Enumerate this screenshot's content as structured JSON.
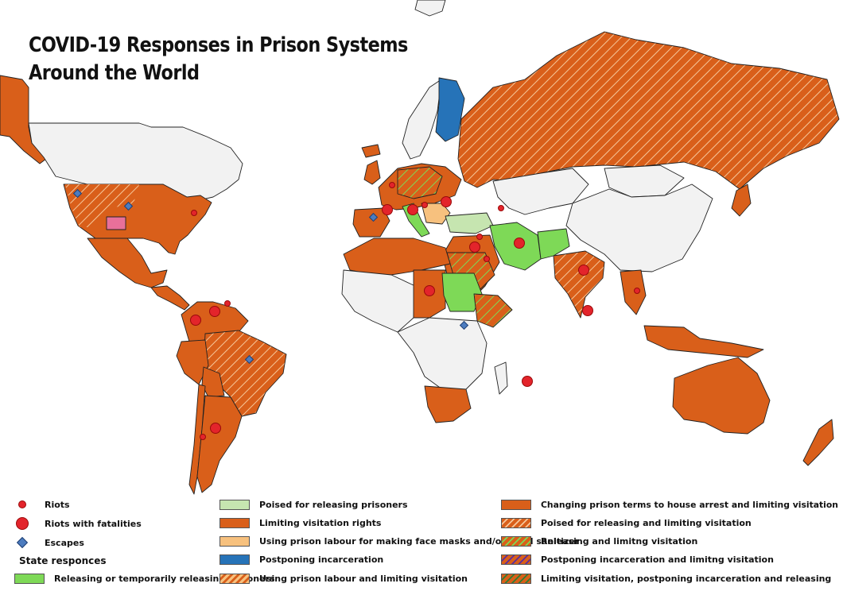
{
  "title": {
    "line1": "COVID-19 Responses in Prison Systems",
    "line2": "Around the World"
  },
  "colors": {
    "ocean": "#ffffff",
    "no_data": "#f2f2f2",
    "border": "#222222",
    "limiting_visitation": "#d95f1a",
    "releasing": "#7ed957",
    "poised_releasing": "#c6e5b0",
    "postponing": "#2673b8",
    "prison_labour": "#f7c17e",
    "riot": "#e3242b",
    "escape": "#4c7cbf",
    "hatch_light": "#f6c79a",
    "hatch_green": "#7ed957",
    "hatch_purple": "#5a2ca0",
    "pink": "#e8709a"
  },
  "legend": {
    "markers": [
      {
        "label": "Riots",
        "marker": "small-red-dot"
      },
      {
        "label": "Riots with fatalities",
        "marker": "large-red-dot"
      },
      {
        "label": "Escapes",
        "marker": "blue-diamond"
      }
    ],
    "state_heading": "State responces",
    "col1": [
      {
        "label": "Releasing or temporarily releasing prisoners",
        "swatch": "releasing"
      }
    ],
    "col2": [
      {
        "label": "Poised for releasing prisoners",
        "swatch": "poised"
      },
      {
        "label": "Limiting visitation rights",
        "swatch": "limiting"
      },
      {
        "label": "Using prison labour for making face masks and/or hand sanitizer",
        "swatch": "labour"
      },
      {
        "label": "Postponing incarceration",
        "swatch": "postponing"
      },
      {
        "label": "Using prison labour and limiting visitation",
        "swatch": "labour-limiting"
      }
    ],
    "col3": [
      {
        "label": "Changing prison terms to house arrest and limiting visitation",
        "swatch": "house-arrest"
      },
      {
        "label": "Poised for releasing and limiting visitation",
        "swatch": "poised-limiting"
      },
      {
        "label": "Releasing and limitng visitation",
        "swatch": "releasing-limiting"
      },
      {
        "label": "Postponing incarceration and limitng visitation",
        "swatch": "postponing-limiting"
      },
      {
        "label": "Limiting visitation, postponing incarceration and releasing",
        "swatch": "all-three"
      }
    ]
  },
  "map_regions": [
    {
      "name": "Canada",
      "category": "no-data"
    },
    {
      "name": "Greenland",
      "category": "no-data"
    },
    {
      "name": "United States",
      "category": "limiting-visitation"
    },
    {
      "name": "Mexico",
      "category": "limiting-visitation"
    },
    {
      "name": "Central America",
      "category": "limiting-visitation"
    },
    {
      "name": "Colombia",
      "category": "limiting-visitation"
    },
    {
      "name": "Brazil",
      "category": "poised-and-limiting"
    },
    {
      "name": "Argentina",
      "category": "limiting-visitation"
    },
    {
      "name": "Western Europe",
      "category": "limiting-visitation"
    },
    {
      "name": "Finland",
      "category": "postponing-incarceration"
    },
    {
      "name": "Russia",
      "category": "poised-and-limiting"
    },
    {
      "name": "Italy",
      "category": "releasing"
    },
    {
      "name": "Turkey",
      "category": "poised-for-releasing"
    },
    {
      "name": "Iran",
      "category": "releasing"
    },
    {
      "name": "Afghanistan",
      "category": "releasing"
    },
    {
      "name": "Sudan",
      "category": "releasing"
    },
    {
      "name": "India",
      "category": "poised-and-limiting"
    },
    {
      "name": "Australia",
      "category": "limiting-visitation"
    },
    {
      "name": "New Zealand",
      "category": "limiting-visitation"
    },
    {
      "name": "South Africa",
      "category": "limiting-visitation"
    },
    {
      "name": "China",
      "category": "no-data"
    }
  ]
}
